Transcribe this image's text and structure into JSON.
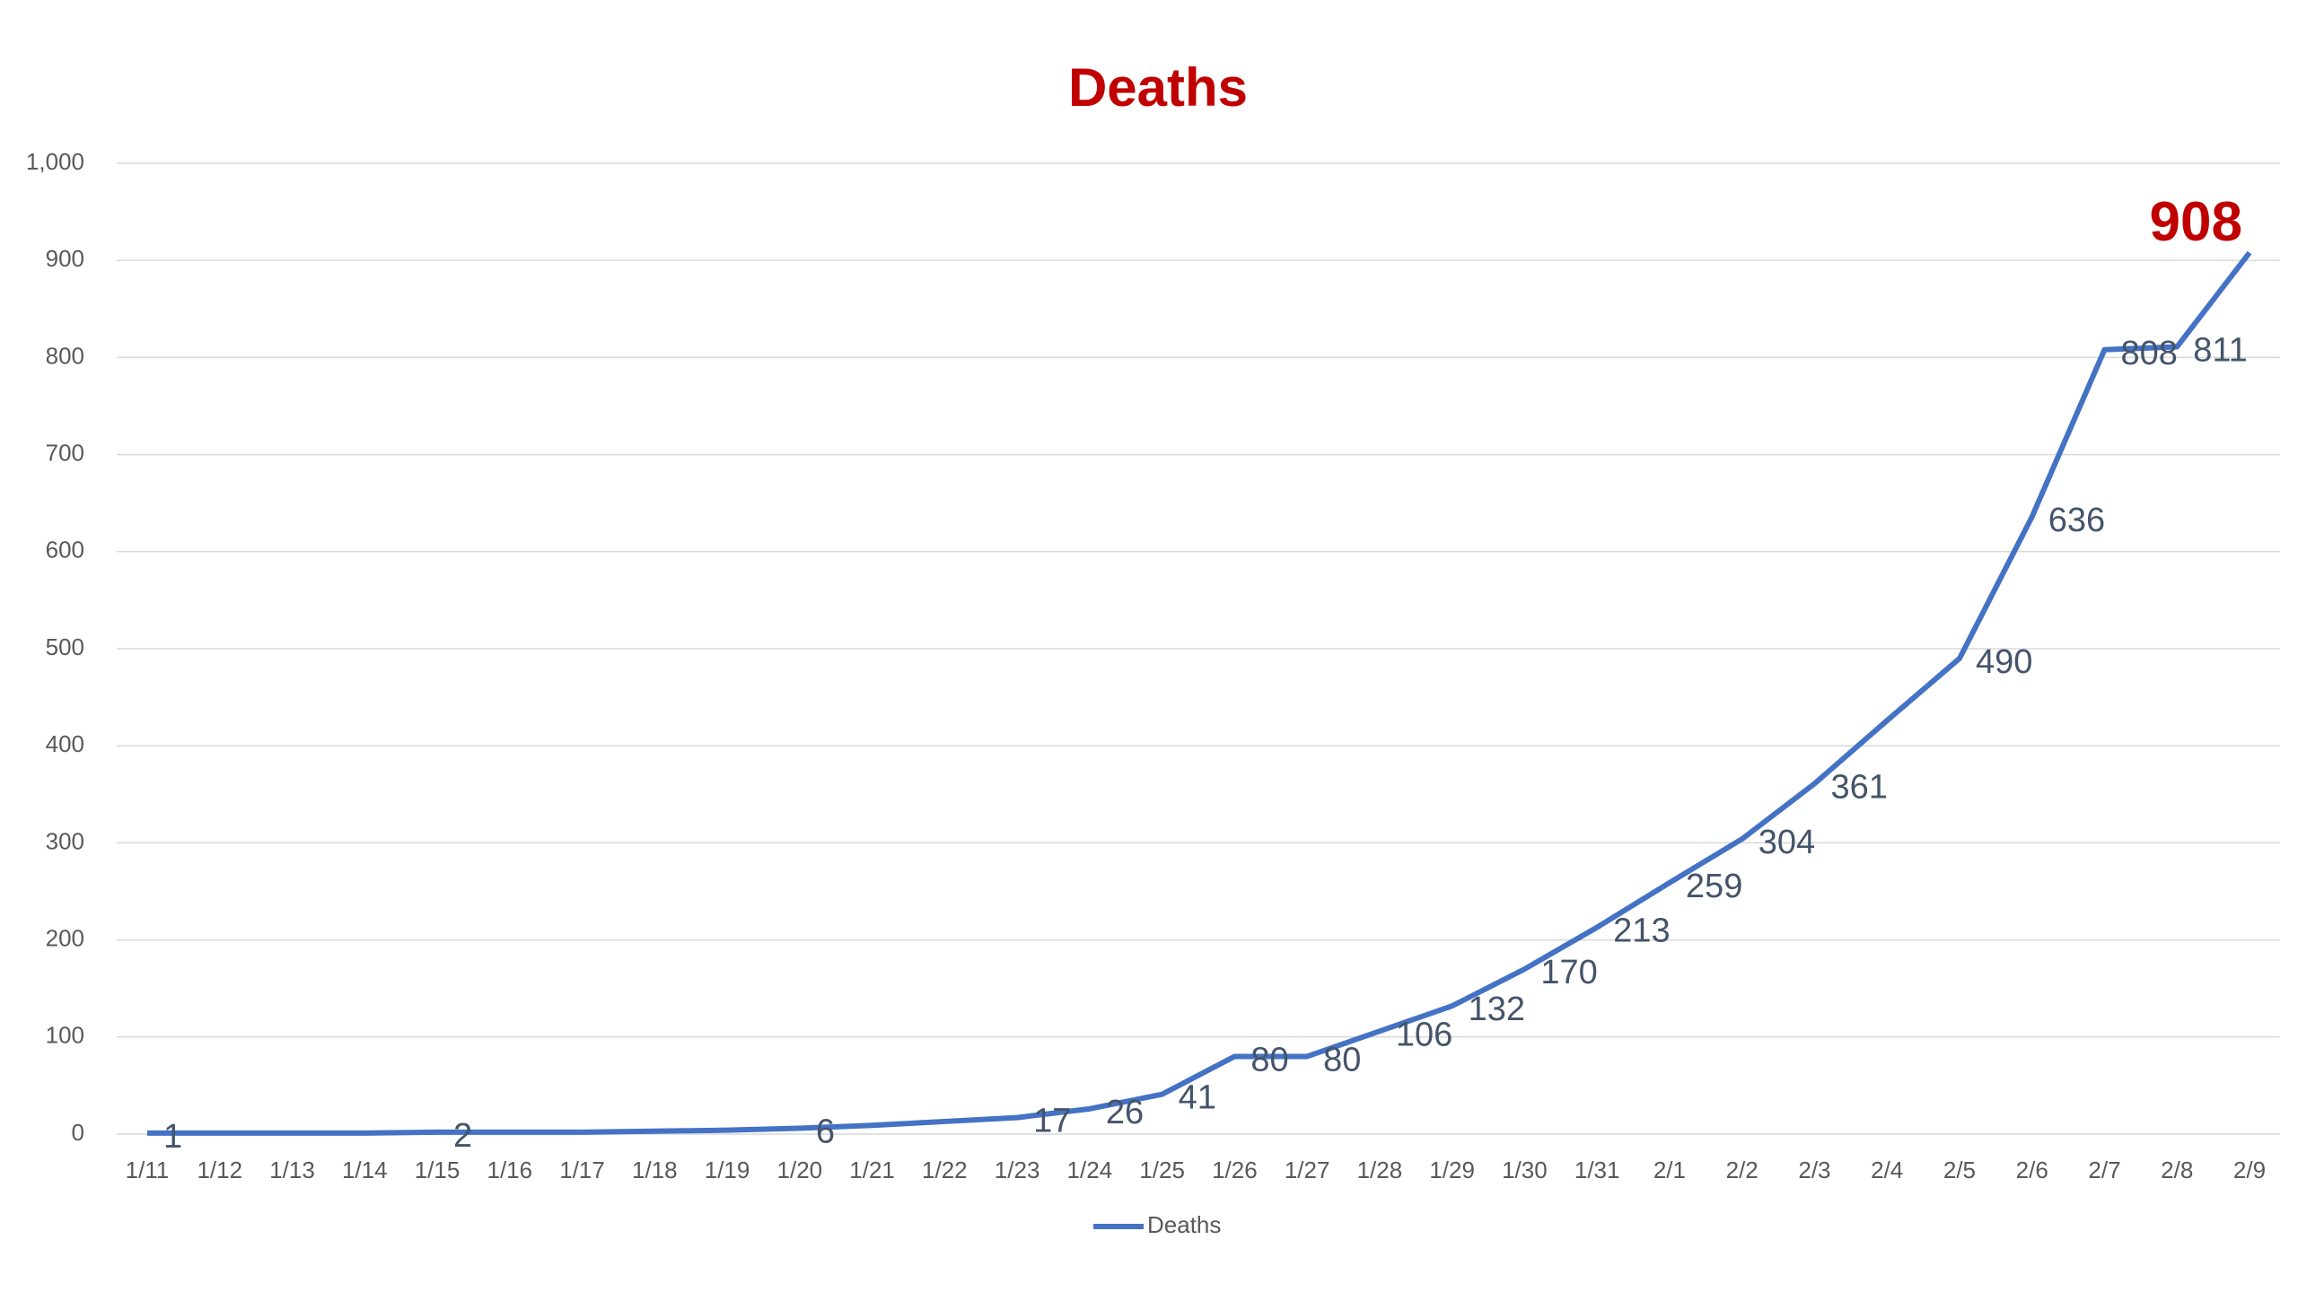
{
  "chart_data": {
    "type": "line",
    "title": "Deaths",
    "categories": [
      "1/11",
      "1/12",
      "1/13",
      "1/14",
      "1/15",
      "1/16",
      "1/17",
      "1/18",
      "1/19",
      "1/20",
      "1/21",
      "1/22",
      "1/23",
      "1/24",
      "1/25",
      "1/26",
      "1/27",
      "1/28",
      "1/29",
      "1/30",
      "1/31",
      "2/1",
      "2/2",
      "2/3",
      "2/4",
      "2/5",
      "2/6",
      "2/7",
      "2/8",
      "2/9"
    ],
    "series": [
      {
        "name": "Deaths",
        "color": "#4472c4",
        "values": [
          1,
          1,
          1,
          1,
          2,
          2,
          2,
          3,
          4,
          6,
          9,
          13,
          17,
          26,
          41,
          80,
          80,
          106,
          132,
          170,
          213,
          259,
          304,
          361,
          426,
          490,
          636,
          808,
          811,
          908
        ],
        "value_labels": [
          "1",
          null,
          null,
          null,
          "2",
          null,
          null,
          null,
          null,
          "6",
          null,
          null,
          "17",
          "26",
          "41",
          "80",
          "80",
          "106",
          "132",
          "170",
          "213",
          "259",
          "304",
          "361",
          null,
          "490",
          "636",
          "808",
          "811",
          "908"
        ]
      }
    ],
    "ylim": [
      0,
      1000
    ],
    "yticks": [
      0,
      100,
      200,
      300,
      400,
      500,
      600,
      700,
      800,
      900,
      {
        "value": 1000,
        "label": "1,000"
      }
    ],
    "grid": true,
    "legend": "bottom"
  }
}
